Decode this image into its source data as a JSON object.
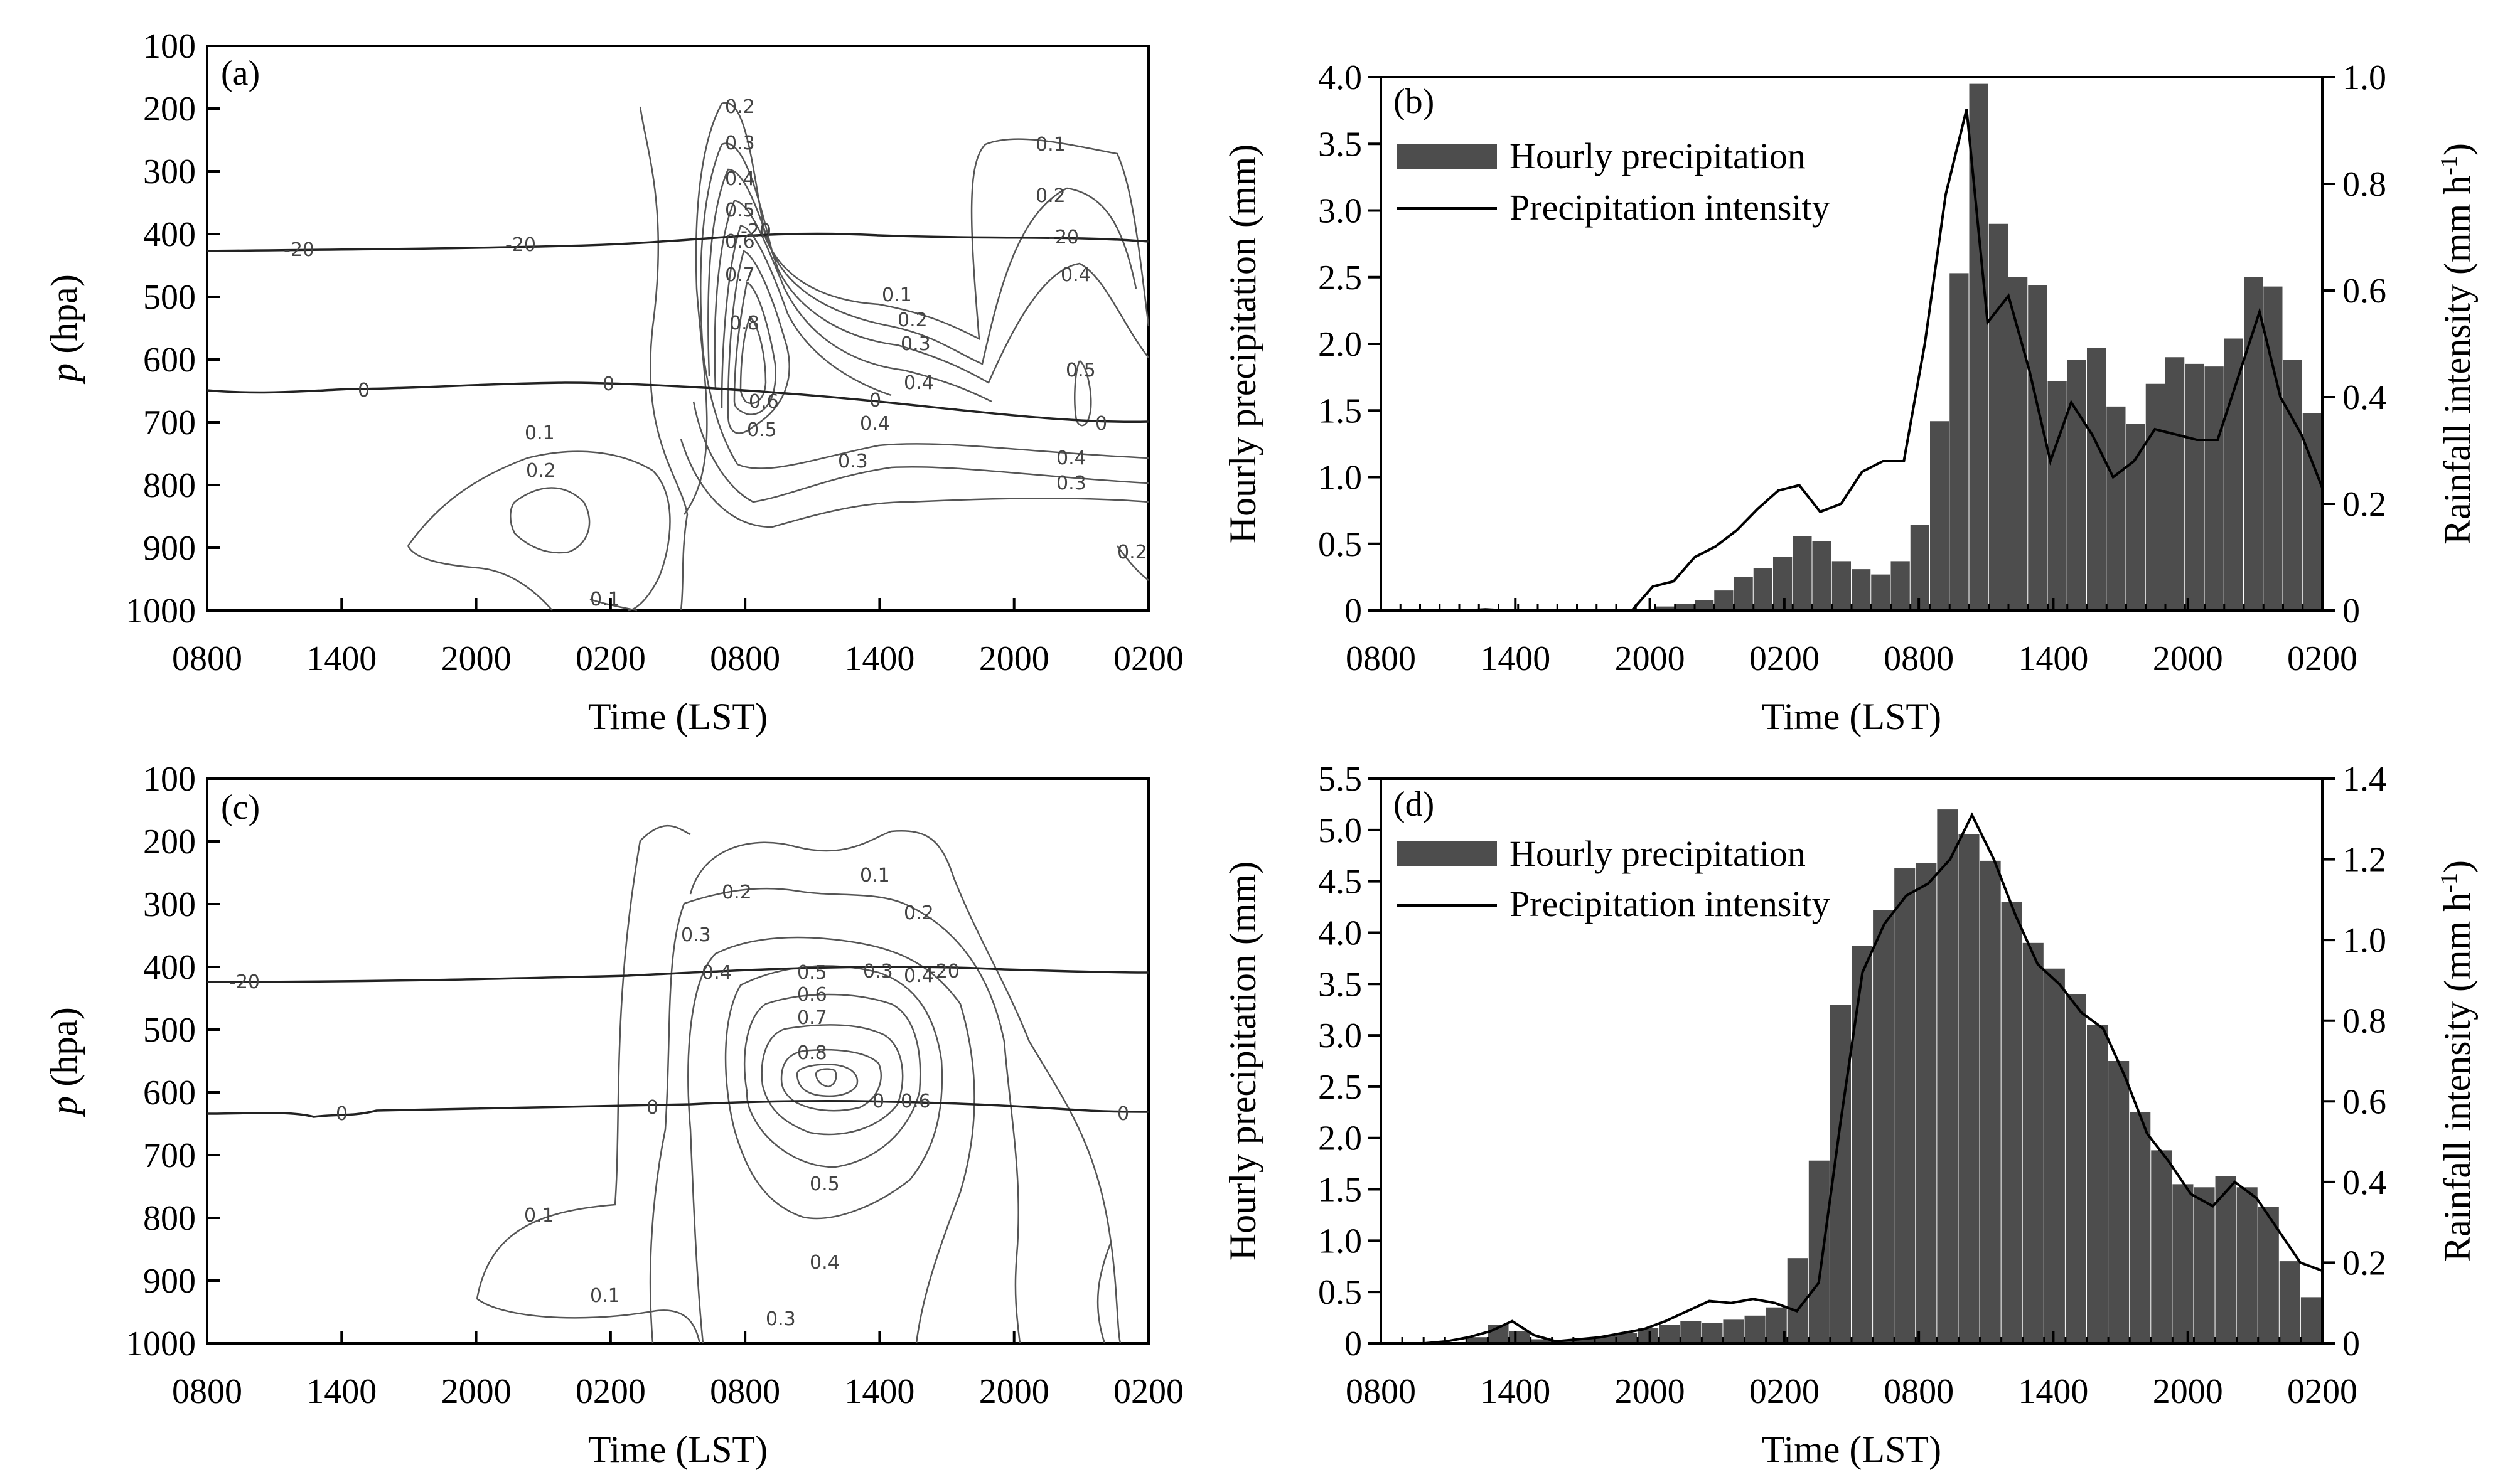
{
  "colors": {
    "bar": "#4d4d4d",
    "line": "#000000",
    "contour": "#555555",
    "zero_line": "#222222"
  },
  "time_ticks": [
    "0800",
    "1400",
    "2000",
    "0200",
    "0800",
    "1400",
    "2000",
    "0200"
  ],
  "charts": [
    {
      "id": "a",
      "panel_label": "(a)",
      "type": "contour",
      "xlabel": "Time (LST)",
      "ylabel_italic": "p",
      "ylabel_rest": " (hpa)",
      "yticks": [
        "100",
        "200",
        "300",
        "400",
        "500",
        "600",
        "700",
        "800",
        "900",
        "1000"
      ],
      "contour_labels": [
        "0.1",
        "0.1",
        "0.1",
        "0.1",
        "0.2",
        "0.2",
        "0.2",
        "0.2",
        "0.2",
        "0.3",
        "0.3",
        "0.3",
        "0.3",
        "0.4",
        "0.4",
        "0.4",
        "0.4",
        "0.4",
        "0.5",
        "0.5",
        "0.5",
        "0.6",
        "0.6",
        "0.7",
        "0.8",
        "-20",
        "-20",
        "-20",
        "-20",
        "0",
        "0",
        "0",
        "0"
      ]
    },
    {
      "id": "b",
      "panel_label": "(b)",
      "type": "bar+line",
      "xlabel": "Time (LST)",
      "ylabel_left": "Hourly precipitation (mm)",
      "ylabel_right_prefix": "Rainfall intensity (mm h",
      "ylabel_right_sup": "-1",
      "ylabel_right_suffix": ")",
      "yticks_left": [
        "0",
        "0.5",
        "1.0",
        "1.5",
        "2.0",
        "2.5",
        "3.0",
        "3.5",
        "4.0"
      ],
      "yticks_right": [
        "0",
        "0.2",
        "0.4",
        "0.6",
        "0.8",
        "1.0"
      ],
      "ylim_left": [
        0,
        4.0
      ],
      "ylim_right": [
        0,
        1.0
      ],
      "legend": [
        "Hourly precipitation",
        "Precipitation intensity"
      ],
      "series": [
        {
          "name": "Hourly precipitation",
          "type": "bar",
          "values": [
            0,
            0,
            0,
            0,
            0,
            0,
            0,
            0,
            0,
            0,
            0,
            0,
            0,
            0,
            0.03,
            0.05,
            0.08,
            0.15,
            0.25,
            0.32,
            0.4,
            0.56,
            0.52,
            0.37,
            0.31,
            0.27,
            0.37,
            0.64,
            1.42,
            2.53,
            3.95,
            2.9,
            2.5,
            2.44,
            1.72,
            1.88,
            1.97,
            1.53,
            1.4,
            1.7,
            1.9,
            1.85,
            1.83,
            2.04,
            2.5,
            2.43,
            1.88,
            1.48
          ]
        },
        {
          "name": "Precipitation intensity",
          "type": "line",
          "values": [
            0,
            0,
            0,
            0,
            0,
            0.002,
            0,
            0,
            0,
            0,
            0,
            0,
            0,
            0.045,
            0.055,
            0.1,
            0.12,
            0.15,
            0.19,
            0.225,
            0.235,
            0.185,
            0.2,
            0.26,
            0.28,
            0.28,
            0.5,
            0.78,
            0.94,
            0.54,
            0.59,
            0.45,
            0.28,
            0.39,
            0.33,
            0.25,
            0.28,
            0.34,
            0.33,
            0.32,
            0.32,
            0.44,
            0.56,
            0.4,
            0.33,
            0.23
          ]
        }
      ]
    },
    {
      "id": "c",
      "panel_label": "(c)",
      "type": "contour",
      "xlabel": "Time (LST)",
      "ylabel_italic": "p",
      "ylabel_rest": " (hpa)",
      "yticks": [
        "100",
        "200",
        "300",
        "400",
        "500",
        "600",
        "700",
        "800",
        "900",
        "1000"
      ],
      "contour_labels": [
        "0.1",
        "0.1",
        "0.1",
        "0.2",
        "0.2",
        "0.3",
        "0.3",
        "0.3",
        "0.4",
        "0.4",
        "0.4",
        "0.5",
        "0.5",
        "0.6",
        "0.6",
        "0.7",
        "0.8",
        "-20",
        "-20",
        "0",
        "0",
        "0",
        "0"
      ]
    },
    {
      "id": "d",
      "panel_label": "(d)",
      "type": "bar+line",
      "xlabel": "Time (LST)",
      "ylabel_left": "Hourly precipitation (mm)",
      "ylabel_right_prefix": "Rainfall intensity (mm h",
      "ylabel_right_sup": "-1",
      "ylabel_right_suffix": ")",
      "yticks_left": [
        "0",
        "0.5",
        "1.0",
        "1.5",
        "2.0",
        "2.5",
        "3.0",
        "3.5",
        "4.0",
        "4.5",
        "5.0",
        "5.5"
      ],
      "yticks_right": [
        "0",
        "0.2",
        "0.4",
        "0.6",
        "0.8",
        "1.0",
        "1.2",
        "1.4"
      ],
      "ylim_left": [
        0,
        5.5
      ],
      "ylim_right": [
        0,
        1.4
      ],
      "legend": [
        "Hourly precipitation",
        "Precipitation intensity"
      ],
      "series": [
        {
          "name": "Hourly precipitation",
          "type": "bar",
          "values": [
            0,
            0,
            0,
            0,
            0.06,
            0.18,
            0.12,
            0.04,
            0.03,
            0.05,
            0.07,
            0.1,
            0.15,
            0.18,
            0.22,
            0.2,
            0.23,
            0.27,
            0.35,
            0.83,
            1.78,
            3.3,
            3.87,
            4.22,
            4.63,
            4.68,
            5.2,
            4.96,
            4.7,
            4.3,
            3.9,
            3.65,
            3.4,
            3.1,
            2.75,
            2.25,
            1.88,
            1.55,
            1.52,
            1.63,
            1.52,
            1.33,
            0.8,
            0.45
          ]
        },
        {
          "name": "Precipitation intensity",
          "type": "line",
          "values": [
            0,
            0,
            0,
            0.005,
            0.015,
            0.03,
            0.055,
            0.02,
            0.005,
            0.01,
            0.015,
            0.025,
            0.035,
            0.055,
            0.08,
            0.105,
            0.1,
            0.11,
            0.1,
            0.08,
            0.15,
            0.55,
            0.92,
            1.04,
            1.11,
            1.14,
            1.2,
            1.31,
            1.2,
            1.06,
            0.94,
            0.89,
            0.82,
            0.78,
            0.66,
            0.52,
            0.45,
            0.37,
            0.34,
            0.4,
            0.36,
            0.28,
            0.2,
            0.18
          ]
        }
      ]
    }
  ]
}
